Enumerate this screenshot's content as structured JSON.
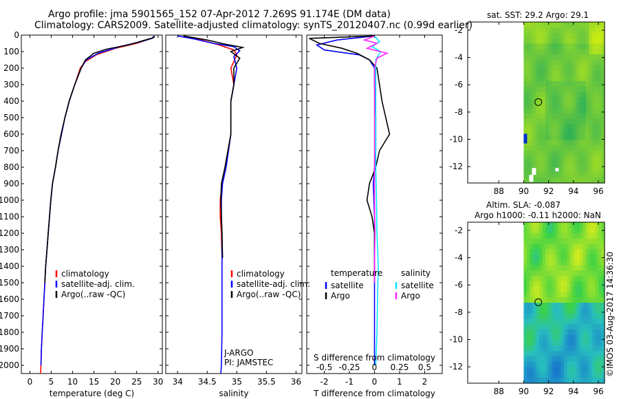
{
  "header": {
    "line1": "Argo profile: jma 5901565_152 07-Apr-2012 7.269S 91.174E (DM data)",
    "line2": "Climatology: CARS2009. Satellite-adjusted climatology: synTS_20120407.nc (0.99d earlier)"
  },
  "side_label": "©IMOS 03-Aug-2017 14:36:30",
  "colors": {
    "climatology": "#ff0000",
    "satellite": "#0000ff",
    "argo": "#000000",
    "sal_sat": "#00e5ff",
    "sal_argo": "#ff22ff"
  },
  "chart_data": [
    {
      "id": "temperature",
      "type": "line",
      "xlabel": "temperature (deg C)",
      "ylabel": "",
      "xlim": [
        -2,
        31
      ],
      "ylim": [
        2050,
        0
      ],
      "xticks": [
        0,
        5,
        10,
        15,
        20,
        25,
        30
      ],
      "yticks": [
        0,
        100,
        200,
        300,
        400,
        500,
        600,
        700,
        800,
        900,
        1000,
        1100,
        1200,
        1300,
        1400,
        1500,
        1600,
        1700,
        1800,
        1900,
        2000
      ],
      "legend": [
        "climatology",
        "satellite-adj. clim.",
        "Argo(..raw -QC)"
      ],
      "series": [
        {
          "name": "climatology",
          "color": "red",
          "points": [
            [
              29.2,
              5
            ],
            [
              28.5,
              20
            ],
            [
              25,
              50
            ],
            [
              20,
              80
            ],
            [
              15.5,
              120
            ],
            [
              13,
              160
            ],
            [
              11.8,
              200
            ],
            [
              10.5,
              300
            ],
            [
              9.2,
              400
            ],
            [
              8.2,
              500
            ],
            [
              7.4,
              600
            ],
            [
              6.6,
              700
            ],
            [
              6,
              800
            ],
            [
              5.3,
              900
            ],
            [
              4.9,
              1000
            ],
            [
              4.6,
              1100
            ],
            [
              4.3,
              1200
            ],
            [
              4,
              1300
            ],
            [
              3.7,
              1400
            ],
            [
              3.5,
              1500
            ],
            [
              3.3,
              1600
            ],
            [
              3.1,
              1700
            ],
            [
              2.9,
              1800
            ],
            [
              2.7,
              1900
            ],
            [
              2.6,
              2000
            ],
            [
              2.5,
              2050
            ]
          ]
        },
        {
          "name": "satellite-adj. clim.",
          "color": "blue",
          "points": [
            [
              29.1,
              5
            ],
            [
              28.6,
              20
            ],
            [
              25.2,
              45
            ],
            [
              21,
              70
            ],
            [
              16,
              110
            ],
            [
              13.2,
              150
            ],
            [
              12,
              200
            ],
            [
              10.5,
              300
            ],
            [
              9.2,
              400
            ],
            [
              8.2,
              500
            ],
            [
              7.4,
              600
            ],
            [
              6.6,
              700
            ],
            [
              6,
              800
            ],
            [
              5.3,
              900
            ],
            [
              4.9,
              1000
            ],
            [
              4.6,
              1100
            ],
            [
              4.3,
              1200
            ],
            [
              4,
              1300
            ],
            [
              3.7,
              1400
            ],
            [
              3.5,
              1500
            ],
            [
              3.3,
              1600
            ],
            [
              3.1,
              1700
            ],
            [
              2.9,
              1800
            ],
            [
              2.7,
              1900
            ],
            [
              2.6,
              2000
            ]
          ]
        },
        {
          "name": "Argo(..raw -QC)",
          "color": "black",
          "points": [
            [
              29.1,
              5
            ],
            [
              29,
              15
            ],
            [
              27,
              30
            ],
            [
              23,
              60
            ],
            [
              18,
              85
            ],
            [
              15,
              110
            ],
            [
              13,
              150
            ],
            [
              12,
              200
            ],
            [
              10.5,
              300
            ],
            [
              9.2,
              400
            ],
            [
              8.2,
              500
            ],
            [
              7.3,
              600
            ],
            [
              6.6,
              700
            ],
            [
              6,
              800
            ],
            [
              5.3,
              900
            ],
            [
              4.9,
              1000
            ],
            [
              4.6,
              1100
            ],
            [
              4.3,
              1200
            ],
            [
              4,
              1300
            ],
            [
              3.7,
              1400
            ],
            [
              3.5,
              1500
            ]
          ]
        }
      ]
    },
    {
      "id": "salinity",
      "type": "line",
      "xlabel": "salinity",
      "ylabel": "",
      "xlim": [
        33.8,
        36.1
      ],
      "ylim": [
        2050,
        0
      ],
      "xticks": [
        34,
        34.5,
        35,
        35.5,
        36
      ],
      "legend": [
        "climatology",
        "satellite-adj. clim.",
        "Argo(..raw -QC)"
      ],
      "annotation": [
        "J-ARGO",
        "PI: JAMSTEC"
      ],
      "series": [
        {
          "name": "climatology",
          "color": "red",
          "points": [
            [
              34.1,
              5
            ],
            [
              34.4,
              30
            ],
            [
              34.7,
              60
            ],
            [
              34.95,
              90
            ],
            [
              35.0,
              120
            ],
            [
              34.9,
              200
            ],
            [
              34.95,
              300
            ],
            [
              34.9,
              400
            ],
            [
              34.9,
              600
            ],
            [
              34.8,
              800
            ],
            [
              34.75,
              900
            ],
            [
              34.72,
              1000
            ],
            [
              34.72,
              1100
            ],
            [
              34.74,
              1200
            ],
            [
              34.75,
              1350
            ]
          ]
        },
        {
          "name": "satellite-adj. clim.",
          "color": "blue",
          "points": [
            [
              34.0,
              5
            ],
            [
              34.3,
              25
            ],
            [
              34.6,
              50
            ],
            [
              34.95,
              70
            ],
            [
              35.05,
              95
            ],
            [
              34.95,
              130
            ],
            [
              35.0,
              200
            ],
            [
              34.95,
              300
            ],
            [
              34.9,
              400
            ],
            [
              34.9,
              600
            ],
            [
              34.82,
              800
            ],
            [
              34.76,
              900
            ],
            [
              34.74,
              1000
            ],
            [
              34.74,
              1100
            ],
            [
              34.75,
              1200
            ],
            [
              34.75,
              1400
            ],
            [
              34.75,
              1600
            ],
            [
              34.75,
              1800
            ],
            [
              34.74,
              2000
            ],
            [
              34.73,
              2050
            ]
          ]
        },
        {
          "name": "Argo(..raw -QC)",
          "color": "black",
          "points": [
            [
              34.1,
              5
            ],
            [
              34.5,
              30
            ],
            [
              34.8,
              55
            ],
            [
              35.1,
              75
            ],
            [
              34.9,
              100
            ],
            [
              35.05,
              140
            ],
            [
              34.95,
              200
            ],
            [
              34.95,
              300
            ],
            [
              34.9,
              400
            ],
            [
              34.9,
              600
            ],
            [
              34.8,
              800
            ],
            [
              34.74,
              900
            ],
            [
              34.73,
              1000
            ],
            [
              34.74,
              1100
            ],
            [
              34.75,
              1200
            ],
            [
              34.76,
              1350
            ]
          ]
        }
      ]
    },
    {
      "id": "difference",
      "type": "line",
      "xlabel": "T difference from climatology",
      "x2label": "S difference from climatology",
      "xlim": [
        -2.7,
        2.7
      ],
      "ylim": [
        2050,
        0
      ],
      "xticks": [
        -2,
        -1,
        0,
        1,
        2
      ],
      "x2ticks": [
        -0.5,
        -0.25,
        0,
        0.25,
        0.5
      ],
      "legend_titles": [
        "temperature",
        "salinity"
      ],
      "legend": [
        "satellite",
        "Argo",
        "satellite",
        "Argo"
      ],
      "series": [
        {
          "name": "T satellite",
          "color": "blue",
          "points": [
            [
              0,
              5
            ],
            [
              -1.5,
              30
            ],
            [
              -2.3,
              60
            ],
            [
              -2.0,
              90
            ],
            [
              -0.6,
              120
            ],
            [
              -0.2,
              150
            ],
            [
              0,
              200
            ],
            [
              0,
              300
            ],
            [
              0.05,
              500
            ],
            [
              0.05,
              700
            ],
            [
              -0.05,
              900
            ],
            [
              0,
              1100
            ],
            [
              0,
              1300
            ],
            [
              0,
              1600
            ],
            [
              0,
              1800
            ],
            [
              0,
              2000
            ]
          ]
        },
        {
          "name": "T Argo",
          "color": "black",
          "points": [
            [
              0,
              5
            ],
            [
              -2.6,
              20
            ],
            [
              -2.2,
              50
            ],
            [
              -1.3,
              80
            ],
            [
              -0.7,
              110
            ],
            [
              -0.2,
              150
            ],
            [
              0.1,
              200
            ],
            [
              0.3,
              400
            ],
            [
              0.6,
              600
            ],
            [
              0.2,
              700
            ],
            [
              0.05,
              800
            ],
            [
              -0.2,
              900
            ],
            [
              -0.3,
              1000
            ],
            [
              -0.1,
              1100
            ],
            [
              0,
              1200
            ],
            [
              0,
              1500
            ]
          ]
        },
        {
          "name": "S satellite",
          "color": "#00e5ff",
          "points": [
            [
              0,
              5
            ],
            [
              0.2,
              40
            ],
            [
              -0.1,
              70
            ],
            [
              0.25,
              100
            ],
            [
              0.05,
              150
            ],
            [
              0.05,
              200
            ],
            [
              0.05,
              400
            ],
            [
              0.05,
              600
            ],
            [
              0.05,
              800
            ],
            [
              0.08,
              1000
            ],
            [
              0.1,
              1200
            ],
            [
              0.15,
              1400
            ],
            [
              0.12,
              1600
            ],
            [
              0.1,
              1800
            ],
            [
              0.05,
              2000
            ]
          ]
        },
        {
          "name": "S Argo",
          "color": "#ff22ff",
          "points": [
            [
              0,
              5
            ],
            [
              -0.4,
              30
            ],
            [
              0.1,
              50
            ],
            [
              -0.3,
              80
            ],
            [
              0.5,
              110
            ],
            [
              0.1,
              140
            ],
            [
              0,
              200
            ],
            [
              0,
              400
            ],
            [
              0,
              600
            ],
            [
              0,
              800
            ],
            [
              0,
              1000
            ],
            [
              0.02,
              1200
            ],
            [
              0,
              1400
            ],
            [
              0,
              1500
            ]
          ]
        }
      ]
    },
    {
      "id": "sst_map",
      "type": "heatmap",
      "title": "sat. SST: 29.2 Argo: 29.1",
      "xticks": [
        88,
        90,
        92,
        94,
        96
      ],
      "yticks": [
        -2,
        -4,
        -6,
        -8,
        -10,
        -12
      ],
      "xlim": [
        85.5,
        96.5
      ],
      "ylim": [
        -13.2,
        -1.4
      ],
      "argo_position": [
        91.174,
        -7.269
      ]
    },
    {
      "id": "sla_map",
      "type": "heatmap",
      "title": "Altim. SLA: -0.087",
      "subtitle": "Argo h1000: -0.11 h2000: NaN",
      "xticks": [
        88,
        90,
        92,
        94,
        96
      ],
      "yticks": [
        -2,
        -4,
        -6,
        -8,
        -10,
        -12
      ],
      "xlim": [
        85.5,
        96.5
      ],
      "ylim": [
        -13.2,
        -1.4
      ],
      "argo_position": [
        91.174,
        -7.269
      ]
    }
  ]
}
